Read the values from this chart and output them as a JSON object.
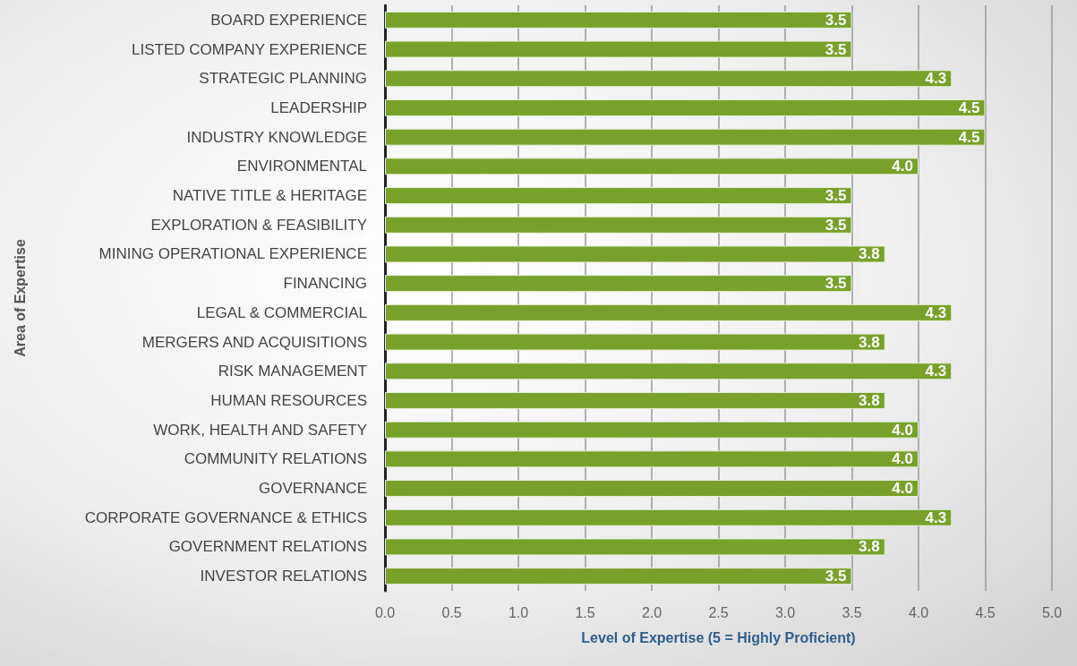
{
  "chart_data": {
    "type": "bar",
    "orientation": "horizontal",
    "xlabel": "Level of Expertise (5 = Highly Proficient)",
    "ylabel": "Area of Expertise",
    "categories": [
      "BOARD EXPERIENCE",
      "LISTED COMPANY EXPERIENCE",
      "STRATEGIC PLANNING",
      "LEADERSHIP",
      "INDUSTRY KNOWLEDGE",
      "ENVIRONMENTAL",
      "NATIVE TITLE & HERITAGE",
      "EXPLORATION & FEASIBILITY",
      "MINING OPERATIONAL EXPERIENCE",
      "FINANCING",
      "LEGAL & COMMERCIAL",
      "MERGERS AND ACQUISITIONS",
      "RISK MANAGEMENT",
      "HUMAN RESOURCES",
      "WORK, HEALTH AND SAFETY",
      "COMMUNITY RELATIONS",
      "GOVERNANCE",
      "CORPORATE GOVERNANCE & ETHICS",
      "GOVERNMENT RELATIONS",
      "INVESTOR RELATIONS"
    ],
    "values": [
      3.5,
      3.5,
      4.25,
      4.5,
      4.5,
      4.0,
      3.5,
      3.5,
      3.75,
      3.5,
      4.25,
      3.75,
      4.25,
      3.75,
      4.0,
      4.0,
      4.0,
      4.25,
      3.75,
      3.5
    ],
    "value_labels": [
      "3.5",
      "3.5",
      "4.3",
      "4.5",
      "4.5",
      "4.0",
      "3.5",
      "3.5",
      "3.8",
      "3.5",
      "4.3",
      "3.8",
      "4.3",
      "3.8",
      "4.0",
      "4.0",
      "4.0",
      "4.3",
      "3.8",
      "3.5"
    ],
    "color": "#77a12a",
    "xlim": [
      0,
      5
    ],
    "xticks": [
      {
        "value": 0,
        "label": "0.0"
      },
      {
        "value": 0.5,
        "label": "0.5"
      },
      {
        "value": 1,
        "label": "1.0"
      },
      {
        "value": 1.5,
        "label": "1.5"
      },
      {
        "value": 2,
        "label": "2.0"
      },
      {
        "value": 2.5,
        "label": "2.5"
      },
      {
        "value": 3,
        "label": "3.0"
      },
      {
        "value": 3.5,
        "label": "3.5"
      },
      {
        "value": 4,
        "label": "4.0"
      },
      {
        "value": 4.5,
        "label": "4.5"
      },
      {
        "value": 5,
        "label": "5.0"
      }
    ],
    "grid": "x"
  }
}
